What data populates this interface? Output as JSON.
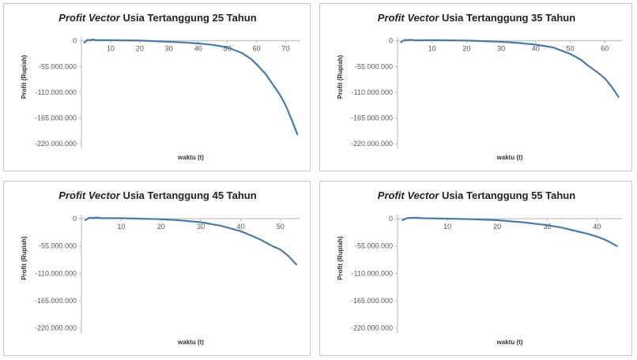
{
  "chart_data": [
    {
      "type": "line",
      "title_italic": "Profit Vector",
      "title_rest": " Usia Tertanggung 25 Tahun",
      "xlabel": "waktu (t)",
      "ylabel": "Profit (Rupiah)",
      "x_ticks": [
        "10",
        "20",
        "30",
        "40",
        "50",
        "60",
        "70"
      ],
      "x_tick_values": [
        10,
        20,
        30,
        40,
        50,
        60,
        70
      ],
      "y_ticks": [
        "0",
        "-55.000.000",
        "-110.000.000",
        "-165.000.000",
        "-220.000.000"
      ],
      "y_tick_values": [
        0,
        -55000000,
        -110000000,
        -165000000,
        -220000000
      ],
      "xlim": [
        0,
        75
      ],
      "ylim": [
        -230000000,
        8000000
      ],
      "series": [
        {
          "x": [
            1,
            2,
            3,
            4,
            5,
            10,
            20,
            30,
            35,
            40,
            45,
            50,
            55,
            58,
            60,
            63,
            65,
            68,
            70,
            72,
            74
          ],
          "y": [
            -4000000,
            2000000,
            1500000,
            3000000,
            1500000,
            1500000,
            500000,
            -2000000,
            -3500000,
            -5500000,
            -8500000,
            -14000000,
            -26000000,
            -38000000,
            -50000000,
            -70000000,
            -88000000,
            -115000000,
            -138000000,
            -168000000,
            -200000000
          ]
        }
      ],
      "line_color": "#4a7aa8"
    },
    {
      "type": "line",
      "title_italic": "Profit Vector",
      "title_rest": " Usia Tertanggung 35 Tahun",
      "xlabel": "waktu (t)",
      "ylabel": "Profit (Rupiah)",
      "x_ticks": [
        "10",
        "20",
        "30",
        "40",
        "50",
        "60"
      ],
      "x_tick_values": [
        10,
        20,
        30,
        40,
        50,
        60
      ],
      "y_ticks": [
        "0",
        "-55.000.000",
        "-110.000.000",
        "-165.000.000",
        "-220.000.000"
      ],
      "y_tick_values": [
        0,
        -55000000,
        -110000000,
        -165000000,
        -220000000
      ],
      "xlim": [
        0,
        65
      ],
      "ylim": [
        -230000000,
        8000000
      ],
      "series": [
        {
          "x": [
            1,
            2,
            3,
            4,
            5,
            10,
            20,
            30,
            35,
            40,
            45,
            50,
            53,
            55,
            58,
            60,
            62,
            64
          ],
          "y": [
            -3000000,
            2000000,
            1500000,
            2500000,
            1000000,
            1500000,
            500000,
            -2000000,
            -4500000,
            -8000000,
            -14000000,
            -28000000,
            -40000000,
            -52000000,
            -68000000,
            -80000000,
            -98000000,
            -120000000
          ]
        }
      ],
      "line_color": "#4a7aa8"
    },
    {
      "type": "line",
      "title_italic": "Profit Vector",
      "title_rest": " Usia Tertanggung 45 Tahun",
      "xlabel": "waktu (t)",
      "ylabel": "Profit (Rupiah)",
      "x_ticks": [
        "10",
        "20",
        "30",
        "40",
        "50"
      ],
      "x_tick_values": [
        10,
        20,
        30,
        40,
        50
      ],
      "y_ticks": [
        "0",
        "-55.000.000",
        "-110.000.000",
        "-165.000.000",
        "-220.000.000"
      ],
      "y_tick_values": [
        0,
        -55000000,
        -110000000,
        -165000000,
        -220000000
      ],
      "xlim": [
        0,
        55
      ],
      "ylim": [
        -230000000,
        8000000
      ],
      "series": [
        {
          "x": [
            1,
            2,
            3,
            4,
            5,
            10,
            20,
            25,
            30,
            35,
            40,
            43,
            45,
            48,
            50,
            52,
            54
          ],
          "y": [
            -3000000,
            2000000,
            1500000,
            2500000,
            1000000,
            1000000,
            -1000000,
            -3500000,
            -7000000,
            -14000000,
            -25000000,
            -35000000,
            -42000000,
            -55000000,
            -62000000,
            -75000000,
            -92000000
          ]
        }
      ],
      "line_color": "#4a7aa8"
    },
    {
      "type": "line",
      "title_italic": "Profit Vector",
      "title_rest": " Usia Tertanggung 55 Tahun",
      "xlabel": "waktu (t)",
      "ylabel": "Profit (Rupiah)",
      "x_ticks": [
        "10",
        "20",
        "30",
        "40"
      ],
      "x_tick_values": [
        10,
        20,
        30,
        40
      ],
      "y_ticks": [
        "0",
        "-55.000.000",
        "-110.000.000",
        "-165.000.000",
        "-220.000.000"
      ],
      "y_tick_values": [
        0,
        -55000000,
        -110000000,
        -165000000,
        -220000000
      ],
      "xlim": [
        0,
        45
      ],
      "ylim": [
        -230000000,
        8000000
      ],
      "series": [
        {
          "x": [
            1,
            2,
            3,
            4,
            5,
            10,
            15,
            20,
            25,
            30,
            33,
            35,
            38,
            40,
            42,
            44
          ],
          "y": [
            -3000000,
            1500000,
            2000000,
            2000000,
            1000000,
            0,
            -1000000,
            -3000000,
            -7000000,
            -13000000,
            -18000000,
            -23000000,
            -30000000,
            -36000000,
            -44000000,
            -55000000
          ]
        }
      ],
      "line_color": "#4a7aa8"
    }
  ]
}
